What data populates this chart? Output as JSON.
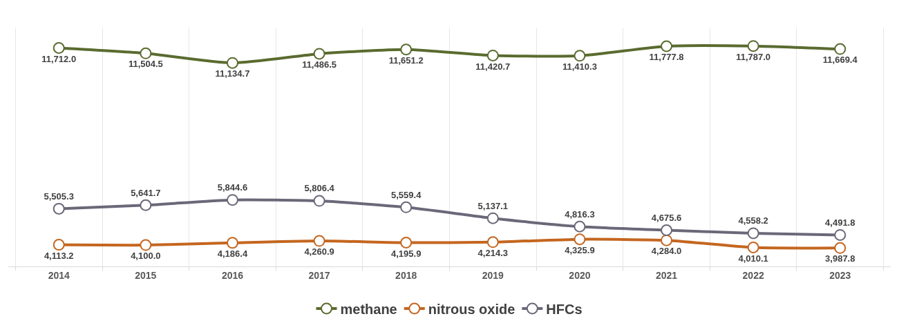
{
  "chart_data": {
    "type": "line",
    "categories": [
      "2014",
      "2015",
      "2016",
      "2017",
      "2018",
      "2019",
      "2020",
      "2021",
      "2022",
      "2023"
    ],
    "series": [
      {
        "name": "methane",
        "color": "#5a6b2f",
        "values": [
          11712.0,
          11504.5,
          11134.7,
          11486.5,
          11651.2,
          11420.7,
          11410.3,
          11777.8,
          11787.0,
          11669.4
        ],
        "value_labels": [
          "11,712.0",
          "11,504.5",
          "11,134.7",
          "11,486.5",
          "11,651.2",
          "11,420.7",
          "11,410.3",
          "11,777.8",
          "11,787.0",
          "11,669.4"
        ]
      },
      {
        "name": "nitrous oxide",
        "color": "#c4661f",
        "values": [
          4113.2,
          4100.0,
          4186.4,
          4260.9,
          4195.9,
          4214.3,
          4325.9,
          4284.0,
          4010.1,
          3987.8
        ],
        "value_labels": [
          "4,113.2",
          "4,100.0",
          "4,186.4",
          "4,260.9",
          "4,195.9",
          "4,214.3",
          "4,325.9",
          "4,284.0",
          "4,010.1",
          "3,987.8"
        ]
      },
      {
        "name": "HFCs",
        "color": "#6a6878",
        "values": [
          5505.3,
          5641.7,
          5844.6,
          5806.4,
          5559.4,
          5137.1,
          4816.3,
          4675.6,
          4558.2,
          4491.8
        ],
        "value_labels": [
          "5,505.3",
          "5,641.7",
          "5,844.6",
          "5,806.4",
          "5,559.4",
          "5,137.1",
          "4,816.3",
          "4,675.6",
          "4,558.2",
          "4,491.8"
        ]
      }
    ],
    "grid": "x",
    "legend": "bottom",
    "marker": "circle",
    "line_style": "solid"
  }
}
